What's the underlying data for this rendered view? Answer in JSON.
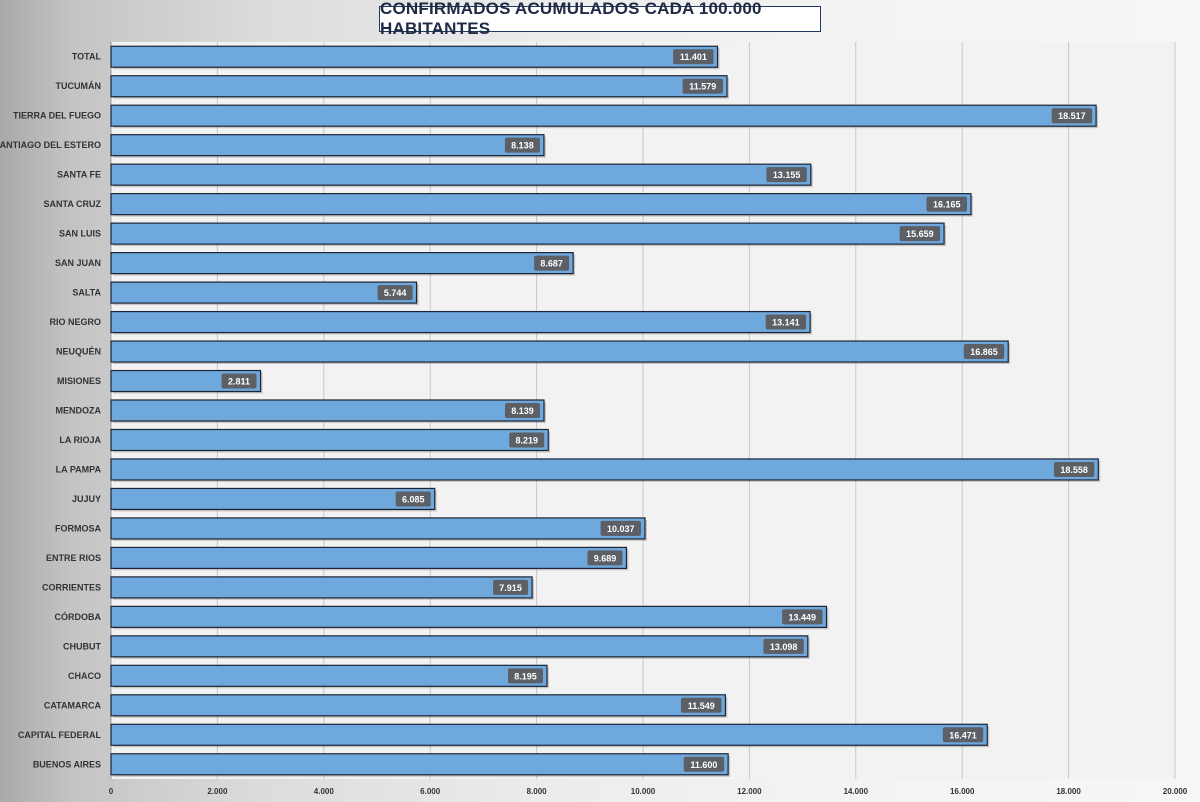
{
  "chart_data": {
    "type": "bar",
    "orientation": "horizontal",
    "title": "CONFIRMADOS ACUMULADOS CADA 100.000 HABITANTES",
    "xlabel": "",
    "ylabel": "",
    "xlim": [
      0,
      20000
    ],
    "x_ticks": [
      0,
      2000,
      4000,
      6000,
      8000,
      10000,
      12000,
      14000,
      16000,
      18000,
      20000
    ],
    "x_tick_labels": [
      "0",
      "2.000",
      "4.000",
      "6.000",
      "8.000",
      "10.000",
      "12.000",
      "14.000",
      "16.000",
      "18.000",
      "20.000"
    ],
    "grid": true,
    "legend": "none",
    "bar_color": "#6fa8dc",
    "bar_border_color": "#1c2536",
    "label_bg_color": "#5c5f66",
    "categories": [
      "TOTAL",
      "TUCUMÁN",
      "TIERRA  DEL FUEGO",
      "SANTIAGO  DEL ESTERO",
      "SANTA FE",
      "SANTA CRUZ",
      "SAN LUIS",
      "SAN JUAN",
      "SALTA",
      "RIO NEGRO",
      "NEUQUÉN",
      "MISIONES",
      "MENDOZA",
      "LA RIOJA",
      "LA PAMPA",
      "JUJUY",
      "FORMOSA",
      "ENTRE RIOS",
      "CORRIENTES",
      "CÓRDOBA",
      "CHUBUT",
      "CHACO",
      "CATAMARCA",
      "CAPITAL  FEDERAL",
      "BUENOS  AIRES"
    ],
    "values": [
      11401,
      11579,
      18517,
      8138,
      13155,
      16165,
      15659,
      8687,
      5744,
      13141,
      16865,
      2811,
      8139,
      8219,
      18558,
      6085,
      10037,
      9689,
      7915,
      13449,
      13098,
      8195,
      11549,
      16471,
      11600
    ],
    "value_labels": [
      "11.401",
      "11.579",
      "18.517",
      "8.138",
      "13.155",
      "16.165",
      "15.659",
      "8.687",
      "5.744",
      "13.141",
      "16.865",
      "2.811",
      "8.139",
      "8.219",
      "18.558",
      "6.085",
      "10.037",
      "9.689",
      "7.915",
      "13.449",
      "13.098",
      "8.195",
      "11.549",
      "16.471",
      "11.600"
    ]
  }
}
